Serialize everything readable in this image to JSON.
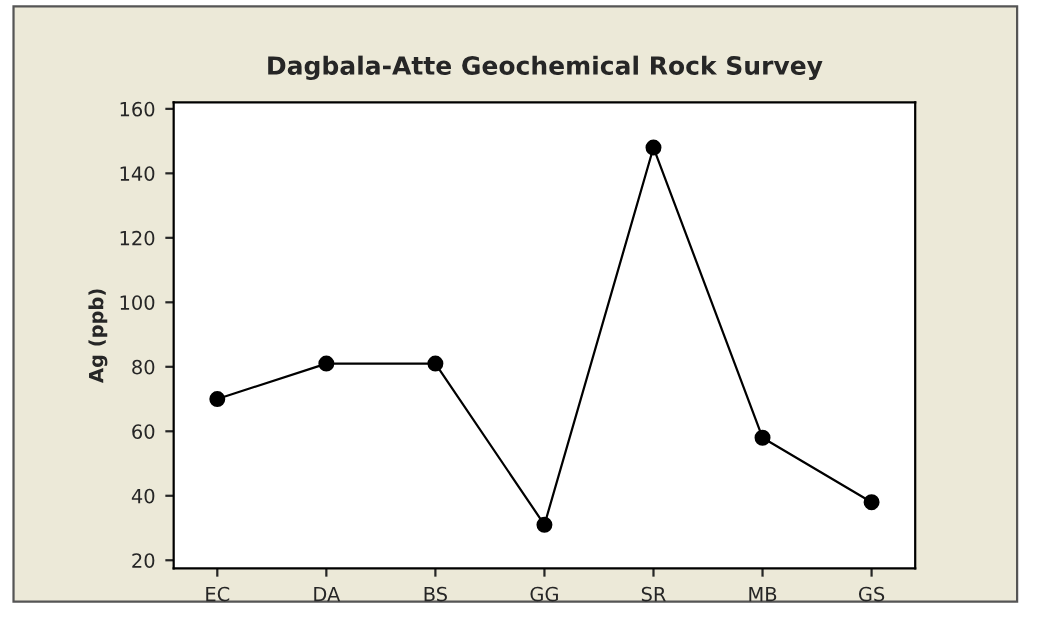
{
  "chart_data": {
    "type": "line",
    "title": "Dagbala-Atte Geochemical Rock Survey",
    "ylabel": "Ag (ppb)",
    "categories": [
      "EC",
      "DA",
      "BS",
      "GG",
      "SR",
      "MB",
      "GS"
    ],
    "series": [
      {
        "color": "#000000",
        "values": [
          70,
          81,
          81,
          31,
          148,
          58,
          38
        ]
      }
    ],
    "ylim": [
      17.5,
      162
    ],
    "yticks": [
      20,
      40,
      60,
      80,
      100,
      120,
      140,
      160
    ],
    "marker": "circle",
    "line_style": "solid",
    "grid": false,
    "legend": false
  }
}
